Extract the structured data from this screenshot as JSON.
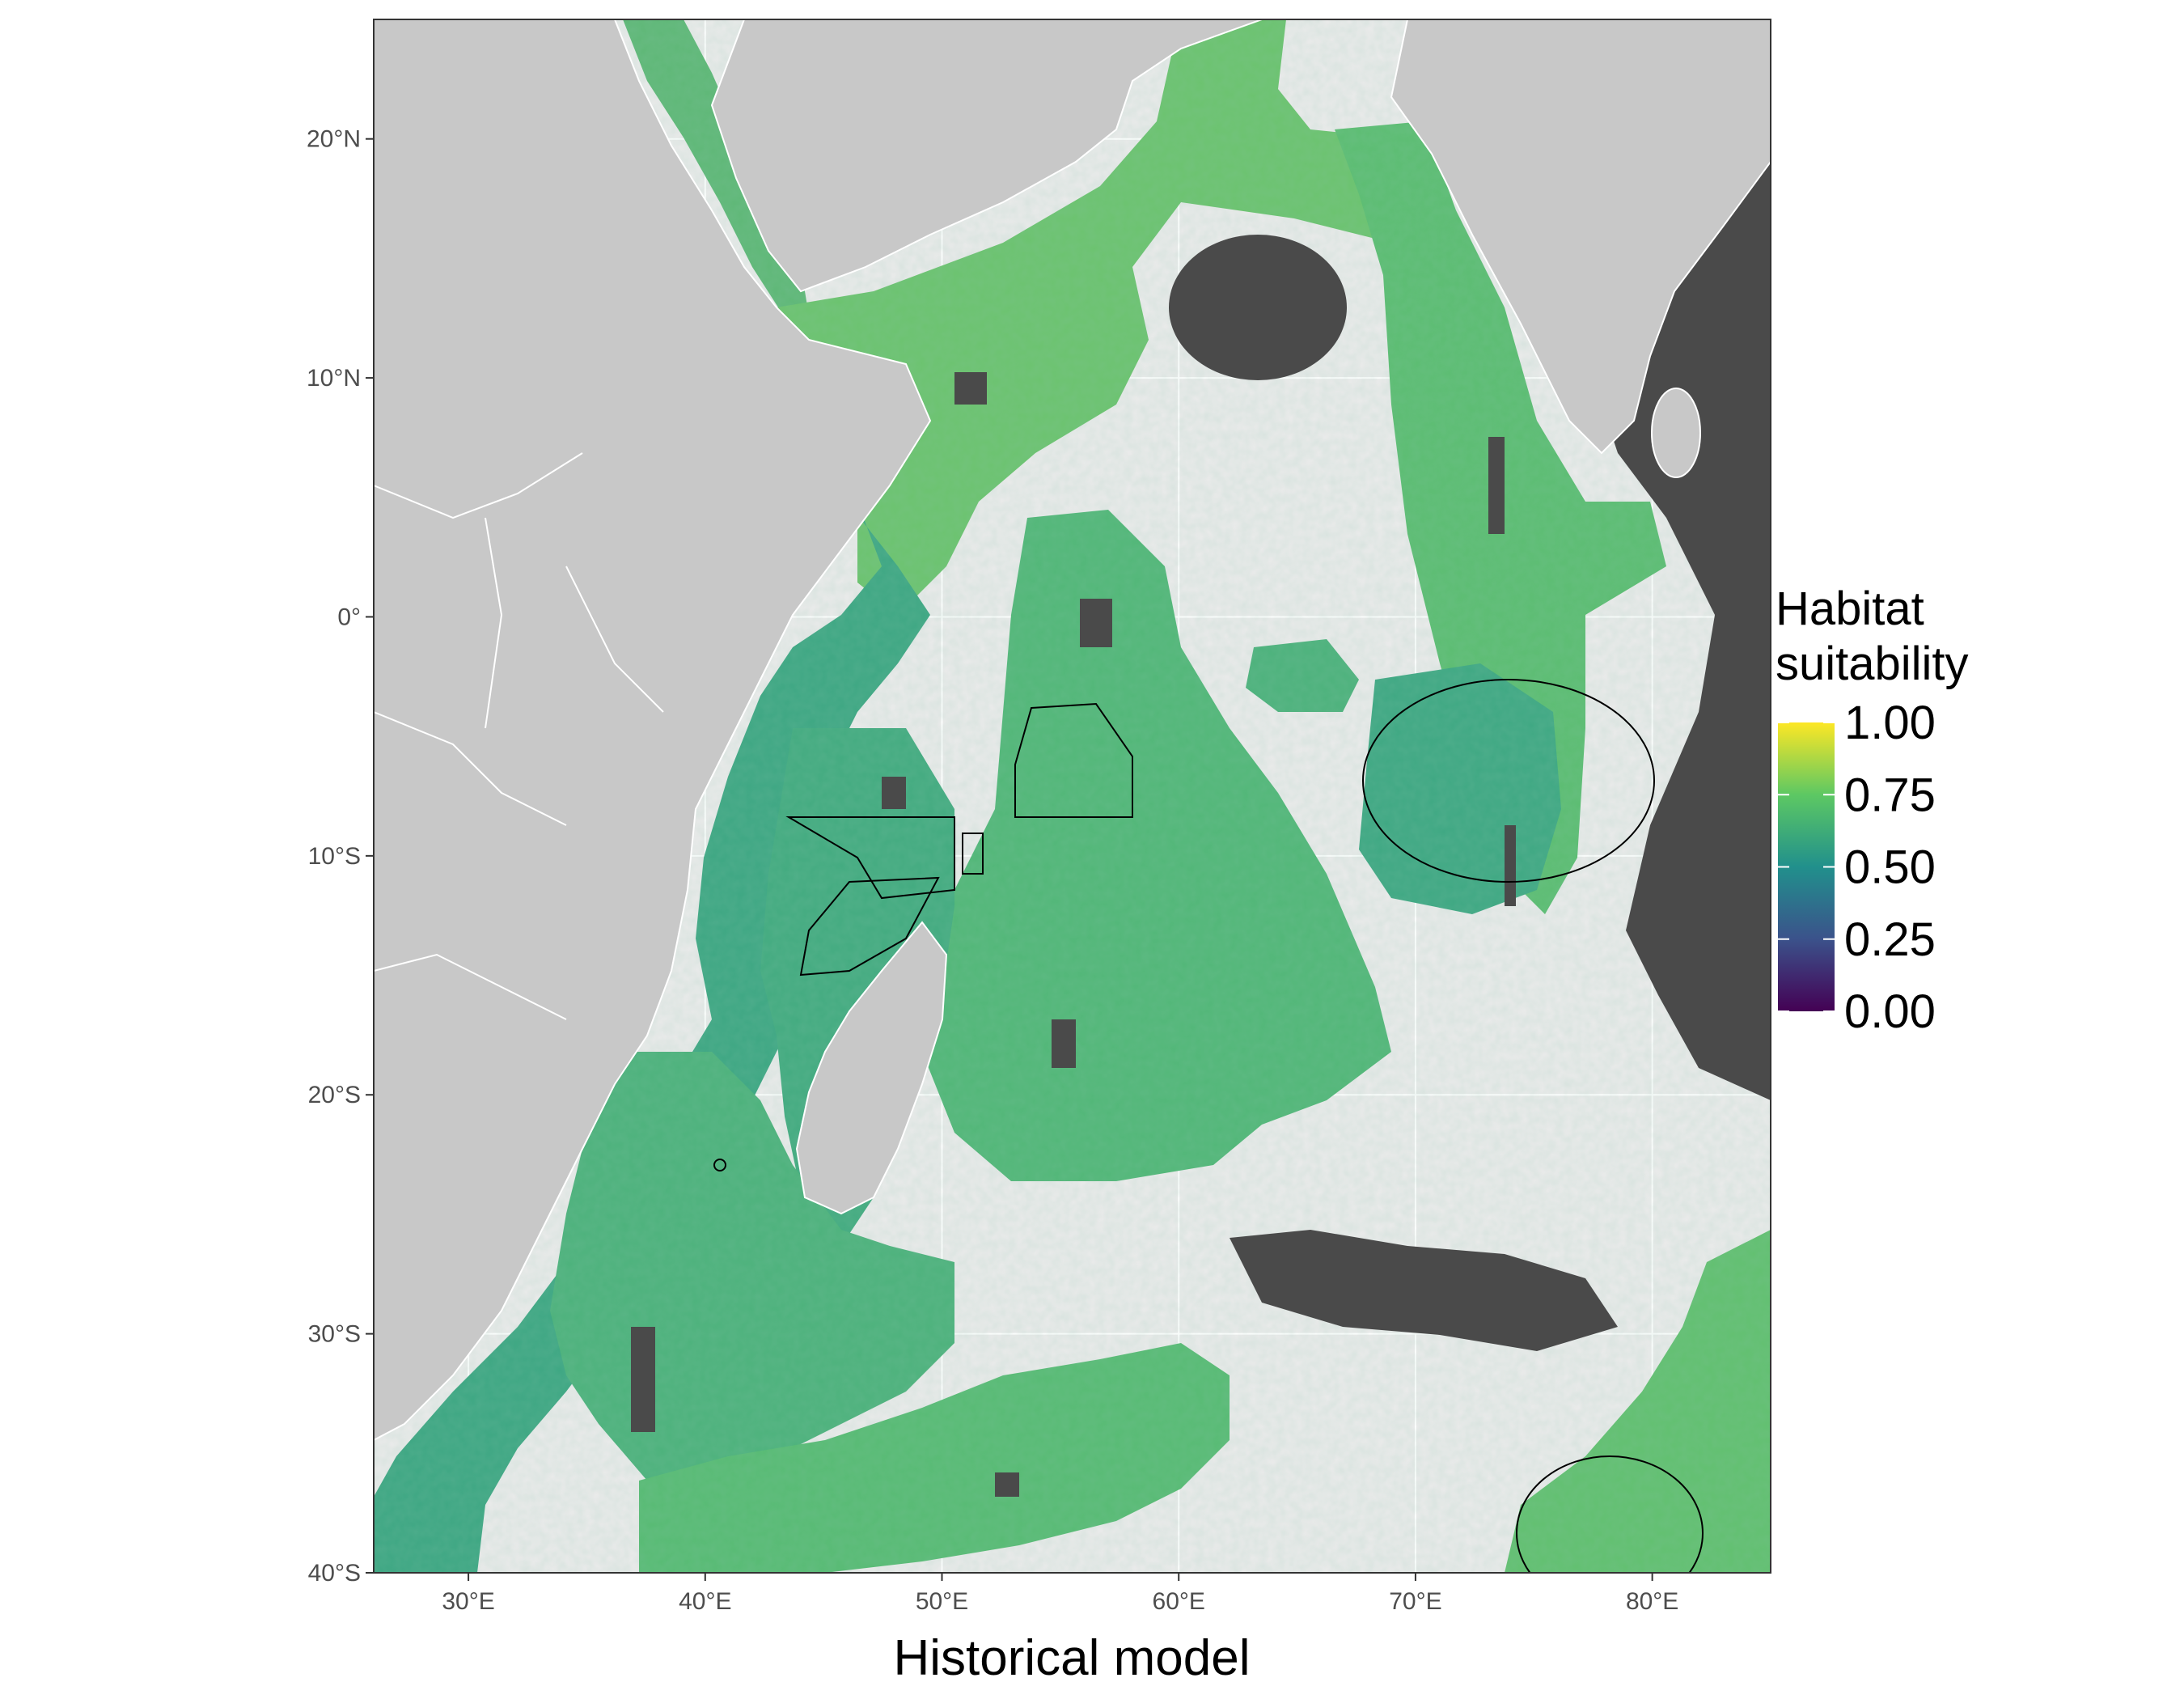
{
  "chart_data": {
    "type": "heatmap",
    "subject": "Habitat suitability raster over the western Indian Ocean",
    "x_axis": {
      "title": "Historical model",
      "range": [
        26,
        85
      ],
      "ticks": [
        30,
        40,
        50,
        60,
        70,
        80
      ],
      "tick_labels": [
        "30°E",
        "40°E",
        "50°E",
        "60°E",
        "70°E",
        "80°E"
      ]
    },
    "y_axis": {
      "title": "",
      "range": [
        -40,
        25
      ],
      "ticks": [
        20,
        10,
        0,
        -10,
        -20,
        -30,
        -40
      ],
      "tick_labels": [
        "20°N",
        "10°N",
        "0°",
        "10°S",
        "20°S",
        "30°S",
        "40°S"
      ]
    },
    "grid": true,
    "legend": {
      "title_line1": "Habitat",
      "title_line2": "suitability",
      "placement": "right",
      "range": [
        0,
        1
      ],
      "breaks": [
        1.0,
        0.75,
        0.5,
        0.25,
        0.0
      ],
      "break_labels": [
        "1.00",
        "0.75",
        "0.50",
        "0.25",
        "0.00"
      ],
      "palette": "viridis"
    }
  },
  "colors": {
    "panel_background": "#ebebeb",
    "land": "#c8c8c8",
    "land_border": "#ffffff",
    "no_data_mask": "#4a4a4a",
    "grid": "#ffffff",
    "polygon_outline": "#000000",
    "viridis_stops": [
      "#440154",
      "#3b528b",
      "#21908c",
      "#5dc863",
      "#fde725"
    ]
  }
}
